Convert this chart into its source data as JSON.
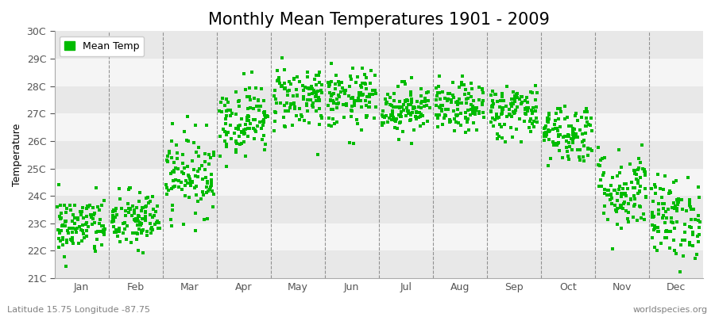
{
  "title": "Monthly Mean Temperatures 1901 - 2009",
  "ylabel": "Temperature",
  "bottom_left_label": "Latitude 15.75 Longitude -87.75",
  "bottom_right_label": "worldspecies.org",
  "legend_label": "Mean Temp",
  "dot_color": "#00bb00",
  "background_color": "#ffffff",
  "plot_bg_color": "#eeeeee",
  "band_color_light": "#f5f5f5",
  "band_color_dark": "#e8e8e8",
  "ylim": [
    21,
    30
  ],
  "ytick_labels": [
    "21C",
    "22C",
    "23C",
    "24C",
    "25C",
    "26C",
    "27C",
    "28C",
    "29C",
    "30C"
  ],
  "ytick_values": [
    21,
    22,
    23,
    24,
    25,
    26,
    27,
    28,
    29,
    30
  ],
  "months": [
    "Jan",
    "Feb",
    "Mar",
    "Apr",
    "May",
    "Jun",
    "Jul",
    "Aug",
    "Sep",
    "Oct",
    "Nov",
    "Dec"
  ],
  "month_means": [
    22.9,
    23.1,
    24.8,
    26.8,
    27.6,
    27.5,
    27.2,
    27.2,
    27.1,
    26.3,
    24.2,
    23.2
  ],
  "month_stds": [
    0.55,
    0.55,
    0.75,
    0.65,
    0.6,
    0.55,
    0.45,
    0.45,
    0.5,
    0.55,
    0.75,
    0.75
  ],
  "n_years": 109,
  "seed": 42,
  "marker_size": 12,
  "title_fontsize": 15,
  "axis_fontsize": 9,
  "tick_fontsize": 9,
  "label_fontsize": 8
}
